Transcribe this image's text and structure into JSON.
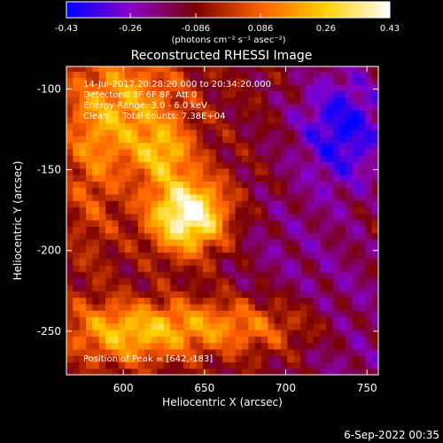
{
  "chart_data": {
    "type": "heatmap",
    "title": "Reconstructed RHESSI Image",
    "xlabel": "Heliocentric X (arcsec)",
    "ylabel": "Heliocentric Y (arcsec)",
    "xlim": [
      565,
      757
    ],
    "ylim": [
      -277,
      -86
    ],
    "x_ticks": [
      600,
      650,
      700,
      750
    ],
    "y_ticks": [
      -100,
      -150,
      -200,
      -250
    ],
    "colorbar": {
      "min": -0.43,
      "max": 0.43,
      "ticks": [
        "-0.43",
        "-0.26",
        "-0.086",
        "0.086",
        "0.26",
        "0.43"
      ],
      "unit_label": "(photons cm⁻² s⁻¹ asec⁻²)",
      "colors": [
        "#0000ff",
        "#8a00c8",
        "#7a0000",
        "#ff6000",
        "#ffd000",
        "#ffffff"
      ]
    },
    "annotations": [
      "14-Jul-2017 20:28:20.000 to 20:34:20.000",
      "Detectors: 3F 6F 8F, Att 0",
      "Energy Range: 3.0 - 6.0 keV",
      "Clean     Total counts: 7.38E+04",
      "Position of Peak = [642,-183]"
    ],
    "peak": {
      "x": 642,
      "y": -183,
      "value": 0.43
    },
    "features": [
      {
        "name": "main source",
        "x": 640,
        "y": -178,
        "value": 0.42
      },
      {
        "name": "upper arc",
        "x": 605,
        "y": -115,
        "value": 0.28
      },
      {
        "name": "lower band",
        "x": 640,
        "y": -250,
        "value": 0.2
      },
      {
        "name": "negative lobe",
        "x": 735,
        "y": -125,
        "value": -0.36
      }
    ]
  },
  "footer": {
    "date": "6-Sep-2022 00:35"
  }
}
